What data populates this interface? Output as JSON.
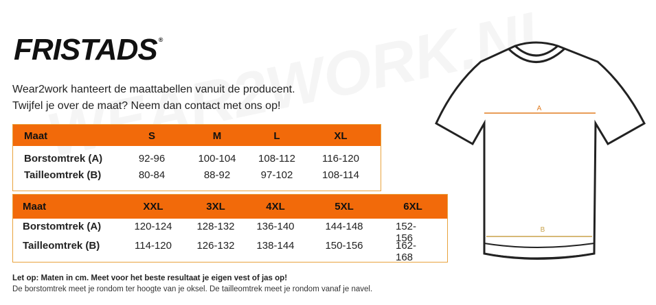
{
  "logo": {
    "text": "FRISTADS",
    "mark": "®"
  },
  "watermark": "WEAR2WORK.NL",
  "intro": [
    "Wear2work hanteert de maattabellen vanuit de producent.",
    "Twijfel je over de maat? Neem dan contact met ons op!"
  ],
  "tables": [
    {
      "header": [
        "Maat",
        "S",
        "M",
        "L",
        "XL"
      ],
      "rows": [
        [
          "Borstomtrek (A)",
          "92-96",
          "100-104",
          "108-112",
          "116-120"
        ],
        [
          "Tailleomtrek (B)",
          "80-84",
          "88-92",
          "97-102",
          "108-114"
        ]
      ]
    },
    {
      "header": [
        "Maat",
        "XXL",
        "3XL",
        "4XL",
        "5XL",
        "6XL"
      ],
      "rows": [
        [
          "Borstomtrek (A)",
          "120-124",
          "128-132",
          "136-140",
          "144-148",
          "152-156"
        ],
        [
          "Tailleomtrek (B)",
          "114-120",
          "126-132",
          "138-144",
          "150-156",
          "162-168"
        ]
      ]
    }
  ],
  "notes": {
    "bold": "Let op: Maten in cm. Meet voor het beste resultaat je eigen vest of jas op!",
    "text": "De borstomtrek meet je rondom ter hoogte van je oksel. De tailleomtrek meet je rondom vanaf je navel."
  },
  "shirt": {
    "a": "A",
    "b": "B"
  }
}
